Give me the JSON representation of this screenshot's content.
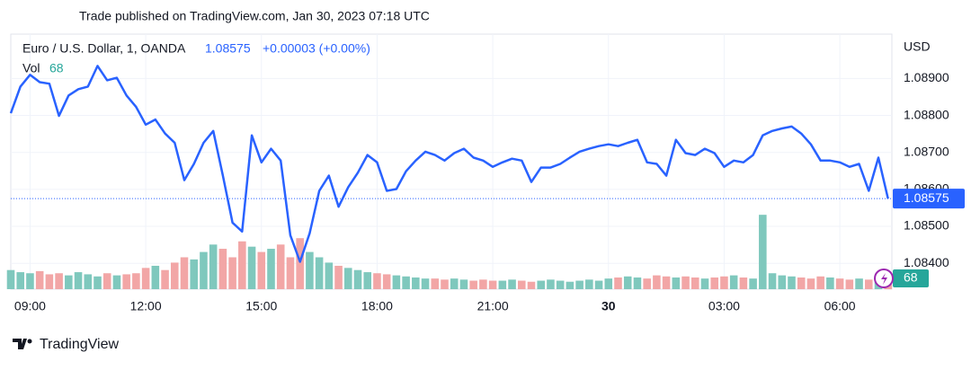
{
  "header": {
    "published": "Trade published on TradingView.com, Jan 30, 2023 07:18 UTC"
  },
  "footer": {
    "brand": "TradingView"
  },
  "chart_data": {
    "type": "line",
    "symbol": "Euro / U.S. Dollar, 1, OANDA",
    "change": "+0.00003 (+0.00%)",
    "volume_label": "Vol",
    "currency": "USD",
    "x": [
      8.5,
      8.75,
      9,
      9.25,
      9.5,
      9.75,
      10,
      10.25,
      10.5,
      10.75,
      11,
      11.25,
      11.5,
      11.75,
      12,
      12.25,
      12.5,
      12.75,
      13,
      13.25,
      13.5,
      13.75,
      14,
      14.25,
      14.5,
      14.75,
      15,
      15.25,
      15.5,
      15.75,
      16,
      16.25,
      16.5,
      16.75,
      17,
      17.25,
      17.5,
      17.75,
      18,
      18.25,
      18.5,
      18.75,
      19,
      19.25,
      19.5,
      19.75,
      20,
      20.25,
      20.5,
      20.75,
      21,
      21.25,
      21.5,
      21.75,
      22,
      22.25,
      22.5,
      22.75,
      23,
      23.25,
      23.5,
      23.75,
      24,
      24.25,
      24.5,
      24.75,
      25,
      25.25,
      25.5,
      25.75,
      26,
      26.25,
      26.5,
      26.75,
      27,
      27.25,
      27.5,
      27.75,
      28,
      28.25,
      28.5,
      28.75,
      29,
      29.25,
      29.5,
      29.75,
      30,
      30.25,
      30.5,
      30.75,
      31,
      31.25
    ],
    "series": [
      {
        "name": "EURUSD",
        "color": "#2962ff",
        "values": [
          1.08806,
          1.08878,
          1.0891,
          1.0889,
          1.08886,
          1.08799,
          1.08854,
          1.08871,
          1.08878,
          1.08934,
          1.08895,
          1.08902,
          1.08854,
          1.08823,
          1.08775,
          1.08789,
          1.08751,
          1.08726,
          1.08625,
          1.08669,
          1.08726,
          1.08758,
          1.08637,
          1.0851,
          1.08486,
          1.08746,
          1.08673,
          1.0871,
          1.08678,
          1.08476,
          1.08404,
          1.08481,
          1.08596,
          1.08637,
          1.08553,
          1.08606,
          1.08645,
          1.08693,
          1.08673,
          1.08596,
          1.08601,
          1.08649,
          1.08678,
          1.08702,
          1.08693,
          1.08678,
          1.08698,
          1.0871,
          1.08686,
          1.08678,
          1.08661,
          1.08673,
          1.08683,
          1.08678,
          1.0862,
          1.08659,
          1.08659,
          1.08669,
          1.08686,
          1.08702,
          1.0871,
          1.08717,
          1.08722,
          1.08717,
          1.08726,
          1.08734,
          1.08673,
          1.08669,
          1.08637,
          1.08734,
          1.08698,
          1.08693,
          1.0871,
          1.08698,
          1.08661,
          1.08678,
          1.08673,
          1.08693,
          1.08746,
          1.08758,
          1.08765,
          1.0877,
          1.08751,
          1.08722,
          1.08678,
          1.08678,
          1.08673,
          1.08661,
          1.08669,
          1.08596,
          1.08686,
          1.08575
        ]
      },
      {
        "name": "Vol",
        "up_color": "#7fc8bd",
        "down_color": "#f2a6a6",
        "values": [
          180,
          160,
          150,
          170,
          140,
          150,
          130,
          160,
          140,
          120,
          150,
          130,
          140,
          150,
          200,
          220,
          180,
          250,
          300,
          280,
          350,
          420,
          380,
          300,
          450,
          400,
          350,
          380,
          420,
          300,
          480,
          350,
          300,
          250,
          220,
          200,
          180,
          160,
          150,
          140,
          130,
          120,
          110,
          100,
          100,
          90,
          100,
          90,
          80,
          90,
          80,
          80,
          90,
          80,
          70,
          80,
          90,
          80,
          70,
          80,
          90,
          80,
          100,
          110,
          120,
          110,
          100,
          130,
          120,
          110,
          120,
          110,
          100,
          110,
          120,
          130,
          110,
          100,
          700,
          150,
          130,
          120,
          110,
          100,
          120,
          110,
          100,
          90,
          100,
          90,
          80,
          68
        ]
      }
    ],
    "xlim": [
      8.5,
      31.35
    ],
    "ylim": [
      1.0833,
      1.0902
    ],
    "vlim": [
      0,
      2400
    ],
    "xticks": [
      {
        "value": 9,
        "label": "09:00"
      },
      {
        "value": 12,
        "label": "12:00"
      },
      {
        "value": 15,
        "label": "15:00"
      },
      {
        "value": 18,
        "label": "18:00"
      },
      {
        "value": 21,
        "label": "21:00"
      },
      {
        "value": 24,
        "label": "30"
      },
      {
        "value": 27,
        "label": "03:00"
      },
      {
        "value": 30,
        "label": "06:00"
      }
    ],
    "yticks": [
      {
        "value": 1.084,
        "label": "1.08400"
      },
      {
        "value": 1.085,
        "label": "1.08500"
      },
      {
        "value": 1.086,
        "label": "1.08600"
      },
      {
        "value": 1.087,
        "label": "1.08700"
      },
      {
        "value": 1.088,
        "label": "1.08800"
      },
      {
        "value": 1.089,
        "label": "1.08900"
      }
    ],
    "grid": true
  }
}
